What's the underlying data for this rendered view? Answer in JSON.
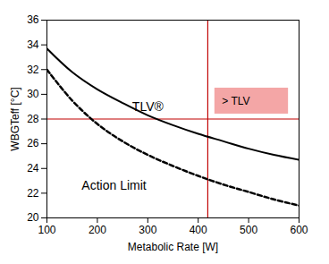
{
  "chart_data": {
    "type": "line",
    "x_label": "Metabolic Rate [W]",
    "y_label": "WBGTeff [°C]",
    "x": [
      100,
      150,
      200,
      250,
      300,
      350,
      400,
      450,
      500,
      550,
      600
    ],
    "series": [
      {
        "name": "TLV®",
        "color": "#000000",
        "line_style": "solid",
        "values": [
          33.7,
          31.8,
          30.4,
          29.3,
          28.3,
          27.5,
          26.8,
          26.2,
          25.6,
          25.1,
          24.7
        ]
      },
      {
        "name": "Action Limit",
        "color": "#000000",
        "line_style": "dashed",
        "values": [
          32.0,
          29.5,
          27.6,
          26.2,
          25.1,
          24.2,
          23.4,
          22.7,
          22.1,
          21.5,
          21.0
        ]
      }
    ],
    "xlim": [
      100,
      600
    ],
    "xticks": [
      100,
      200,
      300,
      400,
      500,
      600
    ],
    "ylim": [
      20,
      36
    ],
    "yticks": [
      20,
      22,
      24,
      26,
      28,
      30,
      32,
      34,
      36
    ],
    "grid": false,
    "annotations": [
      {
        "text": "TLV®",
        "x": 300,
        "y": 29
      },
      {
        "text": "Action Limit",
        "x": 233,
        "y": 22.6
      },
      {
        "text": "> TLV",
        "x1": 433,
        "x2": 579,
        "y1": 28.4,
        "y2": 30.5,
        "color": "#f4a6a6"
      }
    ],
    "reference_lines": [
      {
        "axis": "y",
        "value": 28,
        "color": "#c00000"
      },
      {
        "axis": "x",
        "value": 419,
        "color": "#c00000"
      }
    ]
  }
}
